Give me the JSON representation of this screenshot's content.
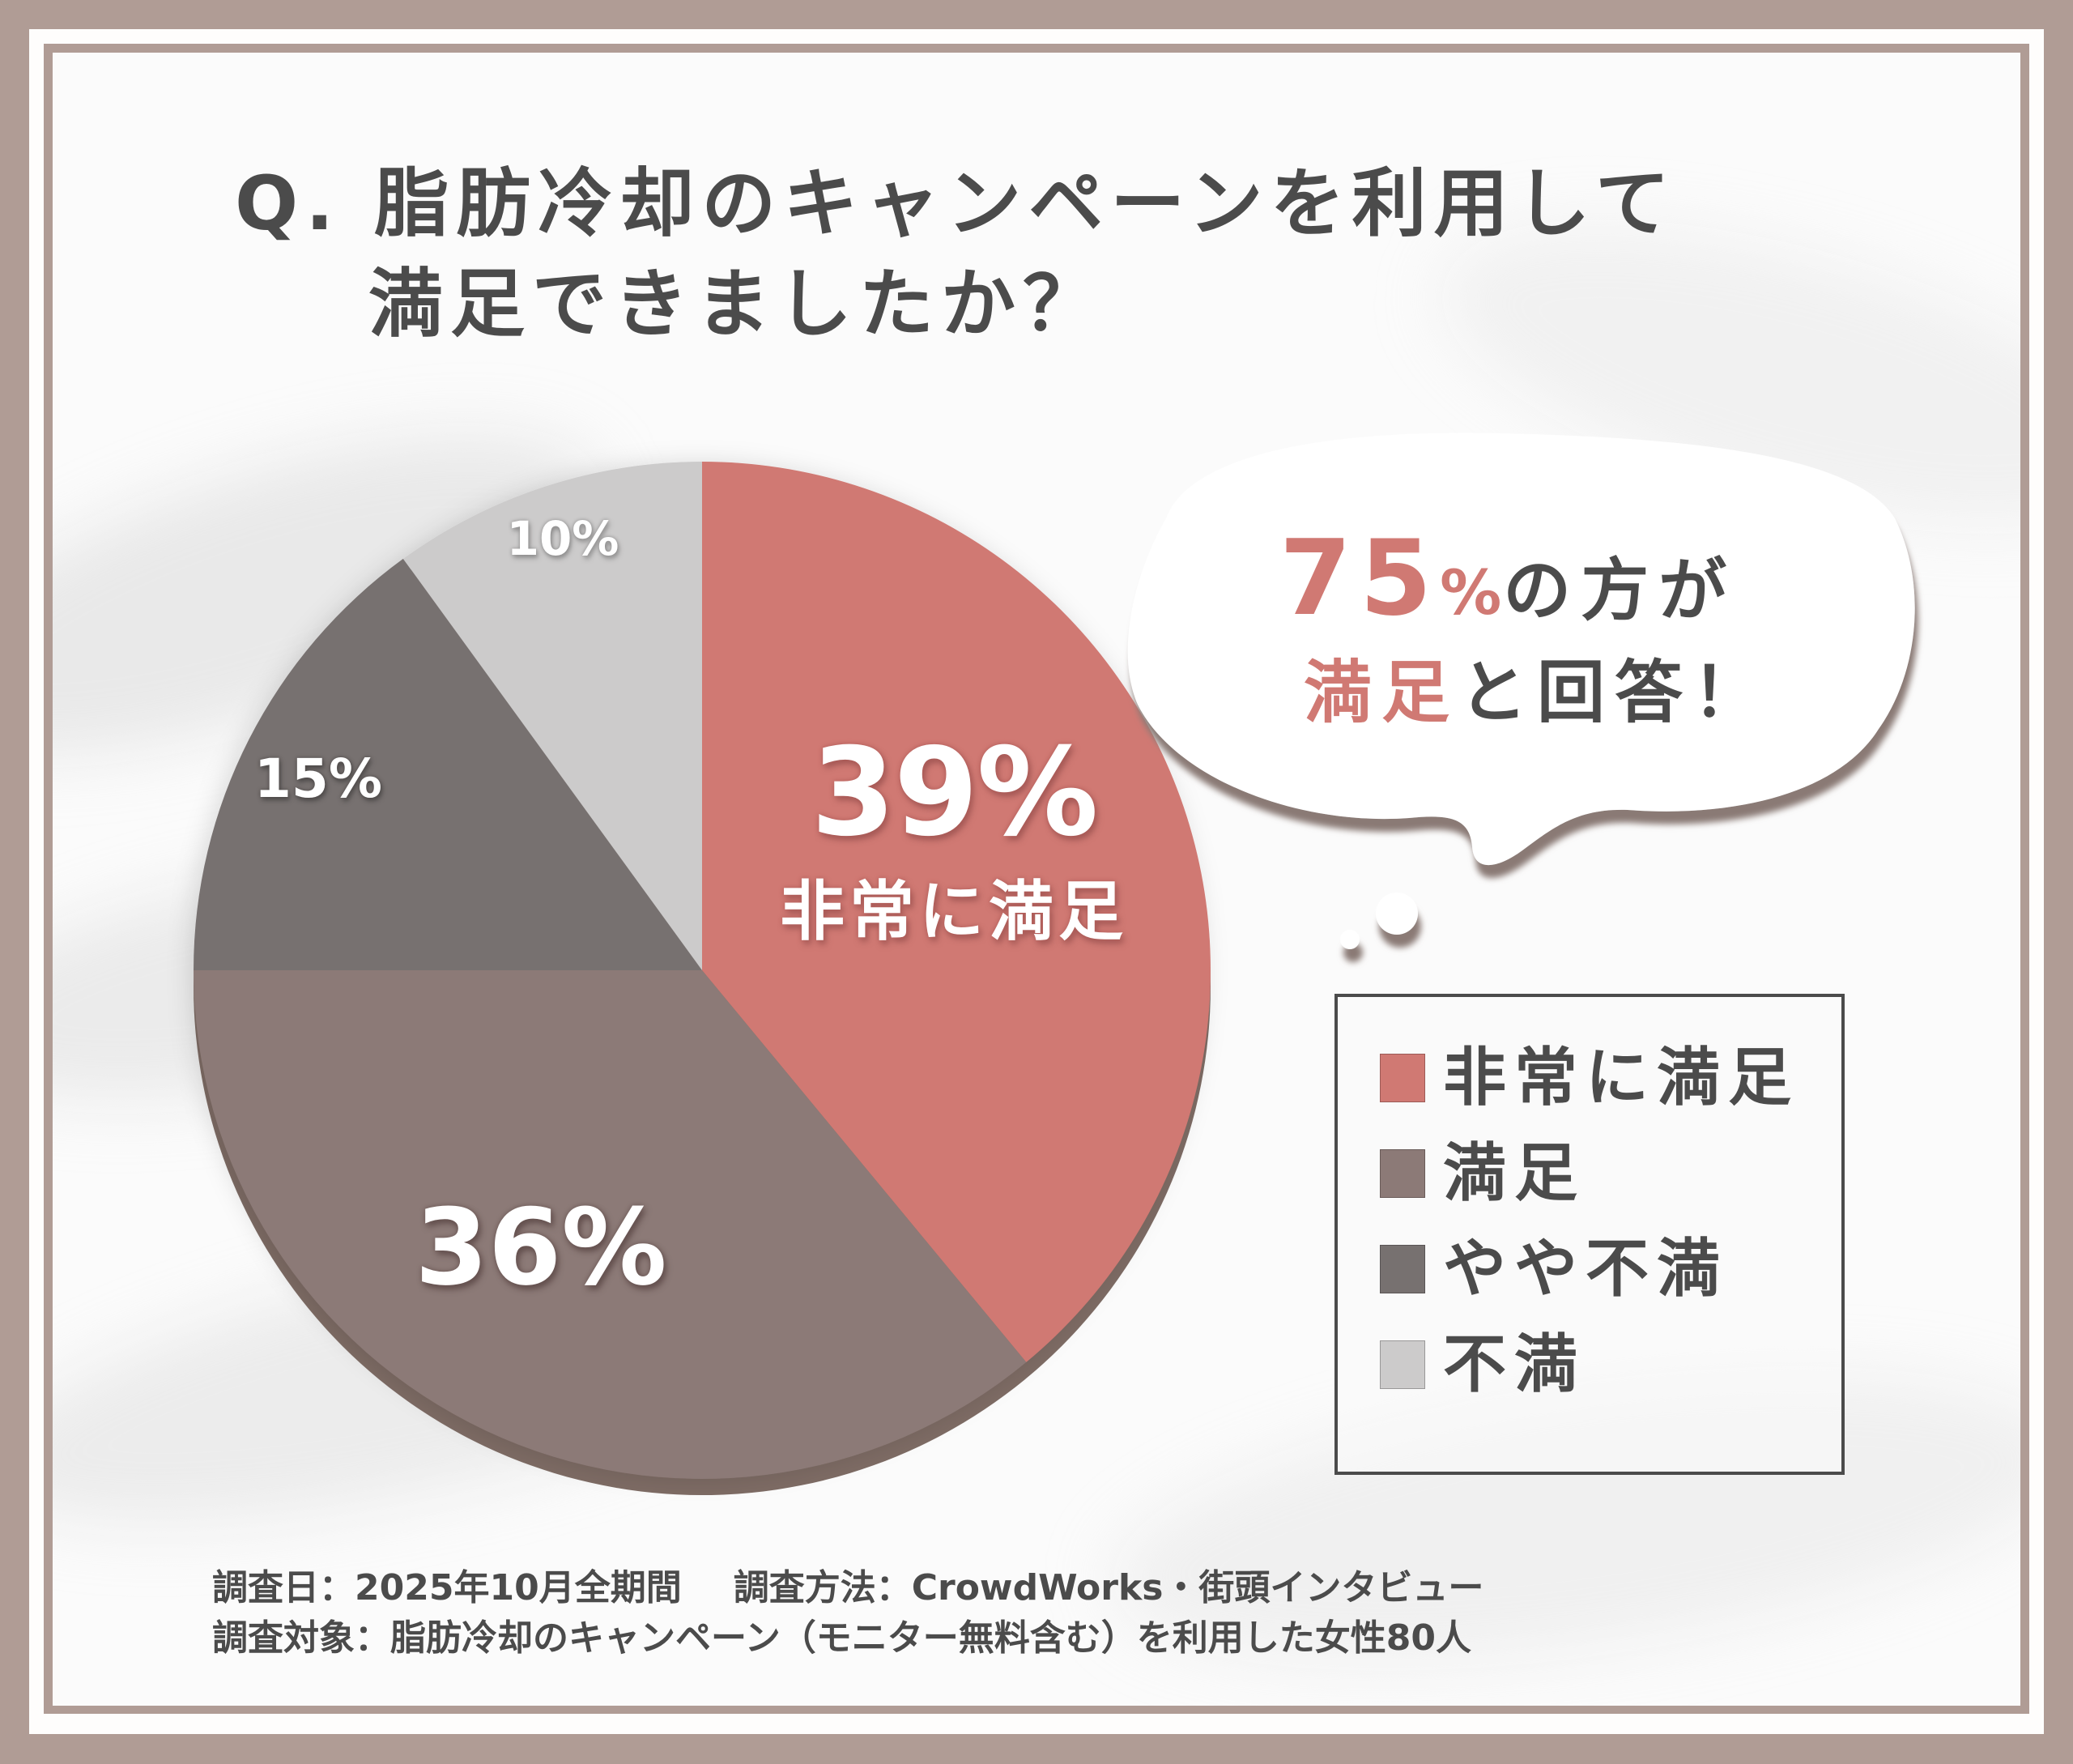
{
  "title": {
    "line1": "Q. 脂肪冷却のキャンペーンを利用して",
    "line2": "満足できましたか？"
  },
  "chart_data": {
    "type": "pie",
    "title": "Q. 脂肪冷却のキャンペーンを利用して満足できましたか？",
    "start_angle": "12 o'clock",
    "direction": "clockwise",
    "categories": [
      "非常に満足",
      "満足",
      "やや不満",
      "不満"
    ],
    "values": [
      39,
      36,
      15,
      10
    ],
    "unit": "%",
    "colors": [
      "#d07973",
      "#8c7a77",
      "#777170",
      "#cccbcb"
    ],
    "data_labels": [
      "39%",
      "36%",
      "15%",
      "10%"
    ],
    "highlight_sublabel": "非常に満足",
    "legend_position": "right",
    "grid": false
  },
  "pie": {
    "labels": {
      "s0_value": "39%",
      "s0_sub": "非常に満足",
      "s1_value": "36%",
      "s2_value": "15%",
      "s3_value": "10%"
    },
    "edge_color": "#7d6b64"
  },
  "callout": {
    "number": "75",
    "percent": "%",
    "line1_rest": "の方が",
    "line2_accent": "満足",
    "line2_rest": "と回答！",
    "accent_color": "#d07973"
  },
  "legend": {
    "items": [
      {
        "label": "非常に満足",
        "color": "#d07973"
      },
      {
        "label": "満足",
        "color": "#8c7a77"
      },
      {
        "label": "やや不満",
        "color": "#777170"
      },
      {
        "label": "不満",
        "color": "#cccbcb"
      }
    ]
  },
  "footer": {
    "survey_date": "調査日：2025年10月全期間",
    "survey_method": "調査方法：CrowdWorks・街頭インタビュー",
    "survey_target": "調査対象：脂肪冷却のキャンペーン（モニター無料含む）を利用した女性80人"
  },
  "frame": {
    "border_color": "#b09c95"
  }
}
